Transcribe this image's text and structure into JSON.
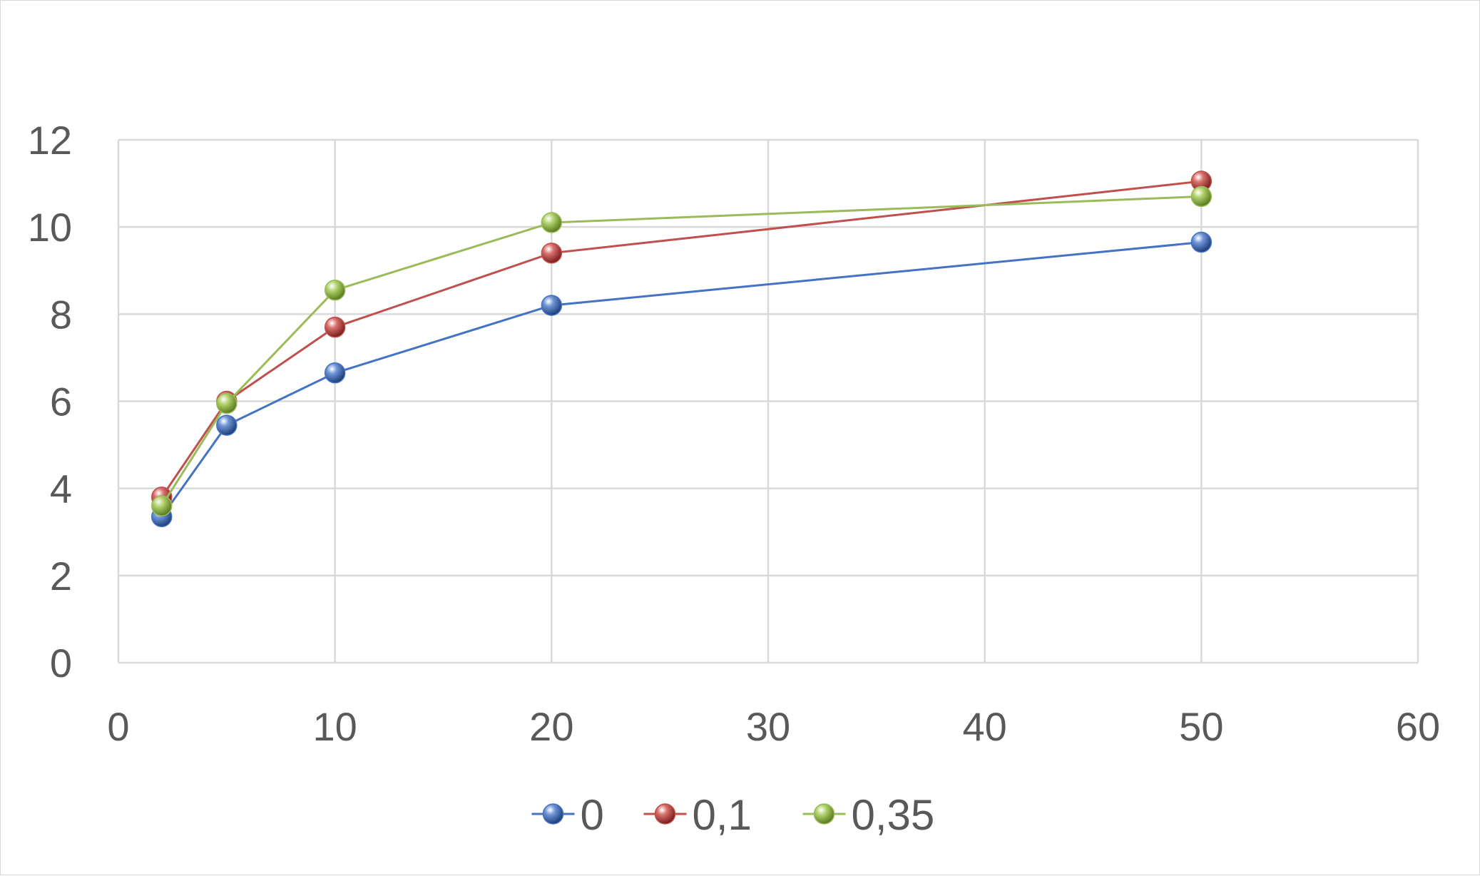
{
  "chart_data": {
    "type": "scatter",
    "title": "",
    "xlabel": "",
    "ylabel": "",
    "xlim": [
      0,
      60
    ],
    "ylim": [
      0,
      12
    ],
    "x_ticks": [
      "0",
      "10",
      "20",
      "30",
      "40",
      "50",
      "60"
    ],
    "y_ticks": [
      "0",
      "2",
      "4",
      "6",
      "8",
      "10",
      "12"
    ],
    "grid": true,
    "markers": true,
    "lines": "straight",
    "legend_position": "bottom",
    "x": [
      2,
      5,
      10,
      20,
      50
    ],
    "series": [
      {
        "name": "0",
        "color": "#4472c4",
        "values": [
          3.35,
          5.45,
          6.65,
          8.2,
          9.65
        ]
      },
      {
        "name": "0,1",
        "color": "#c0504d",
        "values": [
          3.8,
          6.0,
          7.7,
          9.4,
          11.05
        ]
      },
      {
        "name": "0,35",
        "color": "#9bbb59",
        "values": [
          3.6,
          5.95,
          8.55,
          10.1,
          10.7
        ]
      }
    ]
  }
}
